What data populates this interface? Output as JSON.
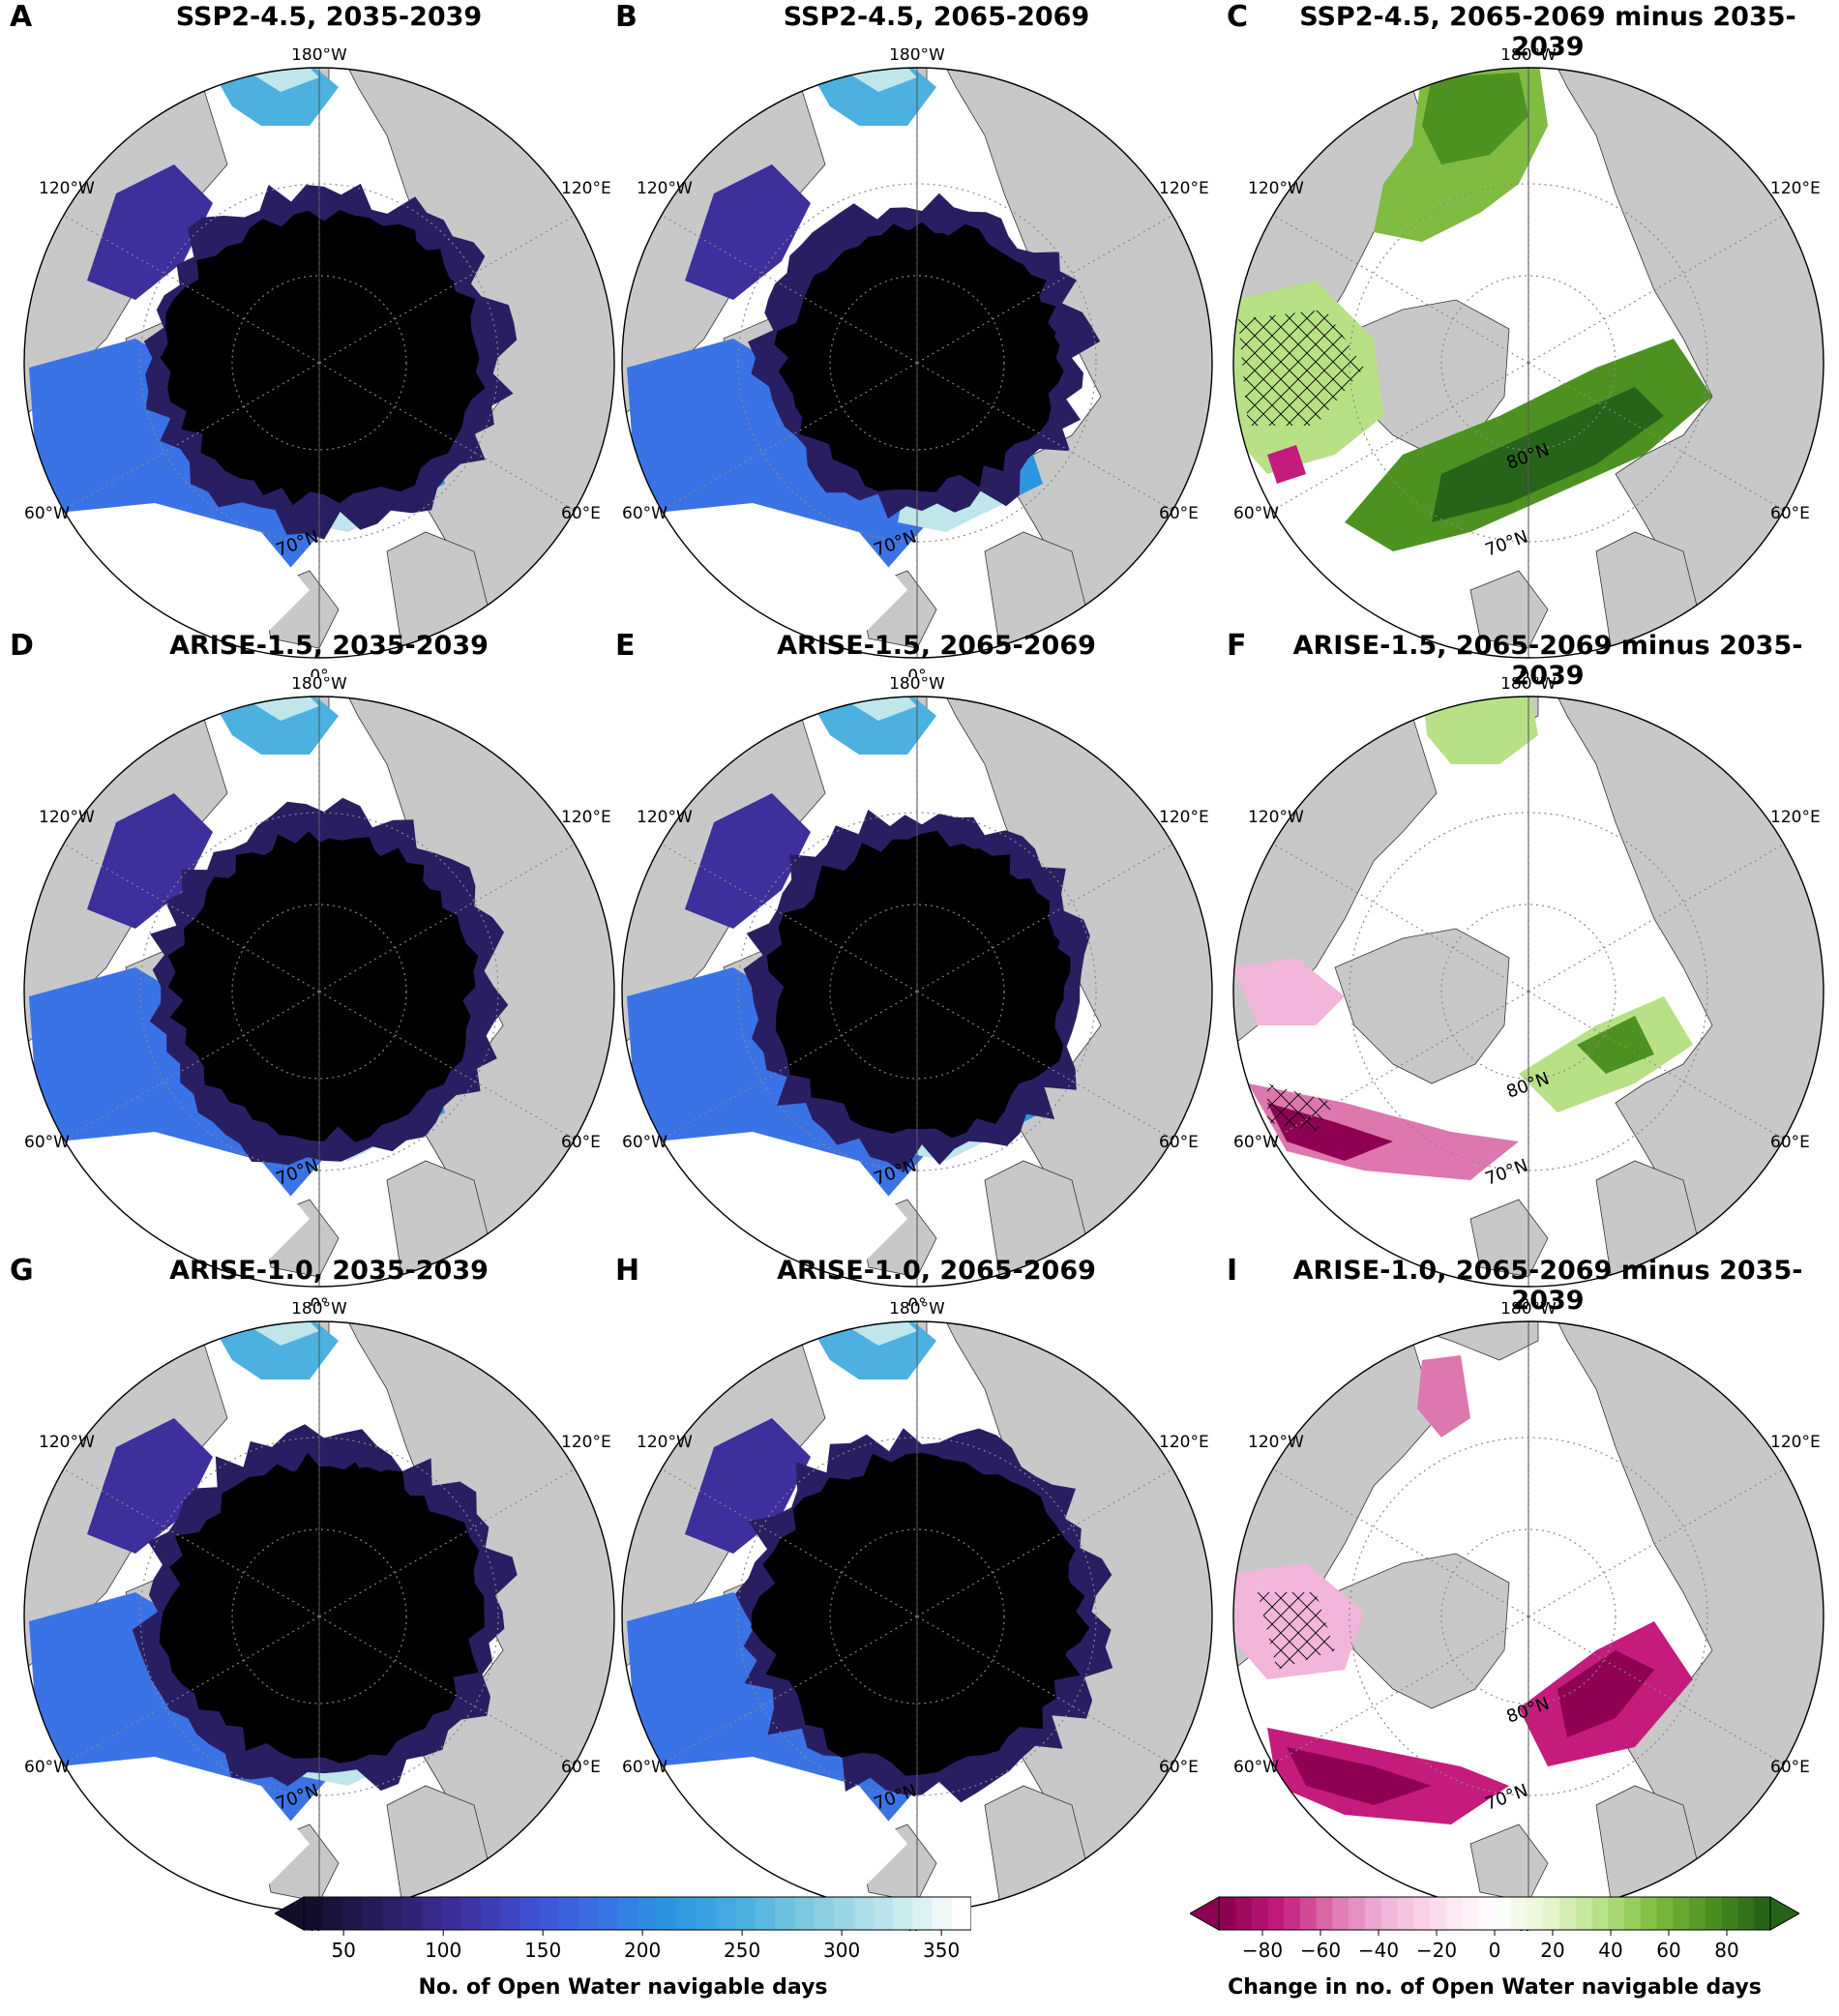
{
  "panels": [
    {
      "letter": "A",
      "title": "SSP2-4.5, 2035-2039",
      "kind": "days",
      "variant": "ssp_early",
      "show_80n": false
    },
    {
      "letter": "B",
      "title": "SSP2-4.5, 2065-2069",
      "kind": "days",
      "variant": "ssp_late",
      "show_80n": false
    },
    {
      "letter": "C",
      "title": "SSP2-4.5, 2065-2069 minus 2035-2039",
      "kind": "diff",
      "variant": "ssp_diff",
      "show_80n": true
    },
    {
      "letter": "D",
      "title": "ARISE-1.5, 2035-2039",
      "kind": "days",
      "variant": "a15_early",
      "show_80n": false
    },
    {
      "letter": "E",
      "title": "ARISE-1.5, 2065-2069",
      "kind": "days",
      "variant": "a15_late",
      "show_80n": false
    },
    {
      "letter": "F",
      "title": "ARISE-1.5, 2065-2069 minus 2035-2039",
      "kind": "diff",
      "variant": "a15_diff",
      "show_80n": true
    },
    {
      "letter": "G",
      "title": "ARISE-1.0, 2035-2039",
      "kind": "days",
      "variant": "a10_early",
      "show_80n": false
    },
    {
      "letter": "H",
      "title": "ARISE-1.0, 2065-2069",
      "kind": "days",
      "variant": "a10_late",
      "show_80n": false
    },
    {
      "letter": "I",
      "title": "ARISE-1.0, 2065-2069 minus 2035-2039",
      "kind": "diff",
      "variant": "a10_diff",
      "show_80n": true
    }
  ],
  "map_labels": {
    "top": "180°W",
    "bottom": "0°",
    "upper_left": "120°W",
    "upper_right": "120°E",
    "lower_left": "60°W",
    "lower_right": "60°E",
    "lat70": "70°N",
    "lat80": "80°N"
  },
  "colorbar_days": {
    "label": "No. of Open Water navigable days",
    "ticks": [
      "50",
      "100",
      "150",
      "200",
      "250",
      "300",
      "350"
    ],
    "min": 30,
    "max": 365,
    "colors": [
      "#120f2c",
      "#2a1e63",
      "#3d2f9c",
      "#3f4fd1",
      "#3a73e6",
      "#2a97e0",
      "#4cb0e0",
      "#86cde0",
      "#bfe6ea",
      "#ffffff"
    ]
  },
  "colorbar_change": {
    "label": "Change in no. of Open Water navigable days",
    "ticks": [
      "−80",
      "−60",
      "−40",
      "−20",
      "0",
      "20",
      "40",
      "60",
      "80"
    ],
    "min": -95,
    "max": 95,
    "colors": [
      "#8e0152",
      "#c51b7d",
      "#de77ae",
      "#f1b6da",
      "#fde0ef",
      "#ffffff",
      "#e6f5d0",
      "#b8e186",
      "#7fbc41",
      "#4d9221",
      "#276419"
    ]
  },
  "colors": {
    "land": "#c8c8c8",
    "ice": "#000000",
    "open_water": "#ffffff"
  }
}
